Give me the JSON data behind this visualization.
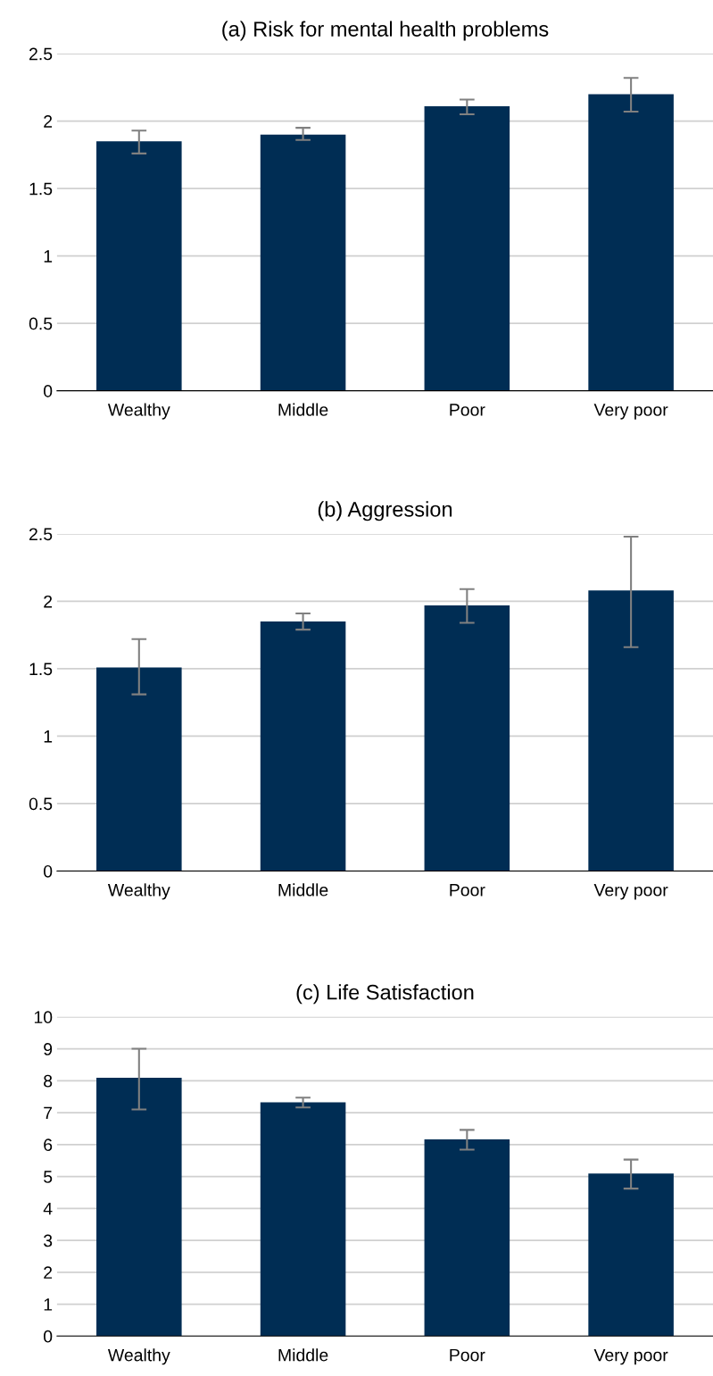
{
  "chart_data": [
    {
      "type": "bar",
      "title": "(a) Risk for mental health problems",
      "categories": [
        "Wealthy",
        "Middle",
        "Poor",
        "Very poor"
      ],
      "values": [
        1.85,
        1.9,
        2.11,
        2.2
      ],
      "color": "#002d54",
      "errors": [
        [
          1.76,
          1.93
        ],
        [
          1.86,
          1.95
        ],
        [
          2.05,
          2.16
        ],
        [
          2.07,
          2.32
        ]
      ],
      "ylim": [
        0,
        2.5
      ],
      "yticks": [
        0,
        {
          "value": 0.5,
          "label": "0.5"
        },
        1,
        {
          "value": 1.5,
          "label": "1.5"
        },
        2,
        {
          "value": 2.5,
          "label": "2.5"
        }
      ],
      "grid": "y"
    },
    {
      "type": "bar",
      "title": "(b) Aggression",
      "categories": [
        "Wealthy",
        "Middle",
        "Poor",
        "Very poor"
      ],
      "values": [
        1.51,
        1.85,
        1.97,
        2.08
      ],
      "color": "#002d54",
      "errors": [
        [
          1.31,
          1.72
        ],
        [
          1.79,
          1.91
        ],
        [
          1.84,
          2.09
        ],
        [
          1.66,
          2.48
        ]
      ],
      "ylim": [
        0,
        2.5
      ],
      "yticks": [
        0,
        {
          "value": 0.5,
          "label": "0.5"
        },
        1,
        {
          "value": 1.5,
          "label": "1.5"
        },
        2,
        {
          "value": 2.5,
          "label": "2.5"
        }
      ],
      "grid": "y"
    },
    {
      "type": "bar",
      "title": "(c) Life Satisfaction",
      "categories": [
        "Wealthy",
        "Middle",
        "Poor",
        "Very poor"
      ],
      "values": [
        8.09,
        7.32,
        6.16,
        5.09
      ],
      "color": "#002d54",
      "errors": [
        [
          7.1,
          9.0
        ],
        [
          7.16,
          7.47
        ],
        [
          5.84,
          6.46
        ],
        [
          4.62,
          5.53
        ]
      ],
      "ylim": [
        0,
        10
      ],
      "yticks": [
        0,
        1,
        2,
        3,
        4,
        5,
        6,
        7,
        8,
        9,
        10
      ],
      "grid": "y"
    }
  ]
}
